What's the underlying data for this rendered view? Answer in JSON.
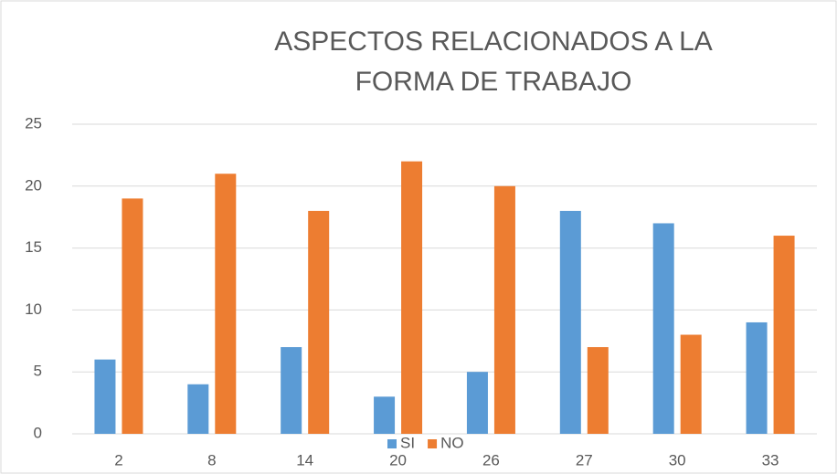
{
  "chart_data": {
    "type": "bar",
    "title": "ASPECTOS RELACIONADOS A LA FORMA DE TRABAJO",
    "categories": [
      "2",
      "8",
      "14",
      "20",
      "26",
      "27",
      "30",
      "33"
    ],
    "series": [
      {
        "name": "SI",
        "color": "#5b9bd5",
        "values": [
          6,
          4,
          7,
          3,
          5,
          18,
          17,
          9
        ]
      },
      {
        "name": "NO",
        "color": "#ed7d31",
        "values": [
          19,
          21,
          18,
          22,
          20,
          7,
          8,
          16
        ]
      }
    ],
    "ylim": [
      0,
      25
    ],
    "yticks": [
      0,
      5,
      10,
      15,
      20,
      25
    ],
    "grid": true,
    "legend": "bottom"
  }
}
